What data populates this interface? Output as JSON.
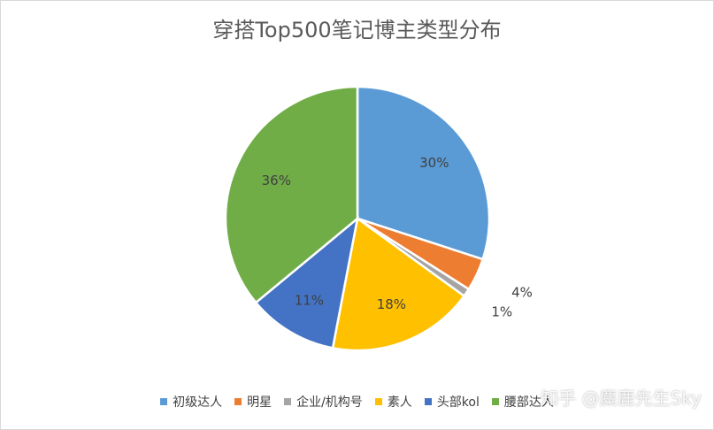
{
  "chart_data": {
    "type": "pie",
    "title": "穿搭Top500笔记博主类型分布",
    "categories": [
      "初级达人",
      "明星",
      "企业/机构号",
      "素人",
      "头部kol",
      "腰部达人"
    ],
    "values": [
      30,
      4,
      1,
      18,
      11,
      36
    ],
    "labels": [
      "30%",
      "4%",
      "1%",
      "18%",
      "11%",
      "36%"
    ],
    "colors": [
      "#5b9bd5",
      "#ed7d31",
      "#a5a5a5",
      "#ffc000",
      "#4472c4",
      "#70ad47"
    ],
    "legend_position": "bottom"
  },
  "watermark": "知乎 @麋鹿先生Sky"
}
